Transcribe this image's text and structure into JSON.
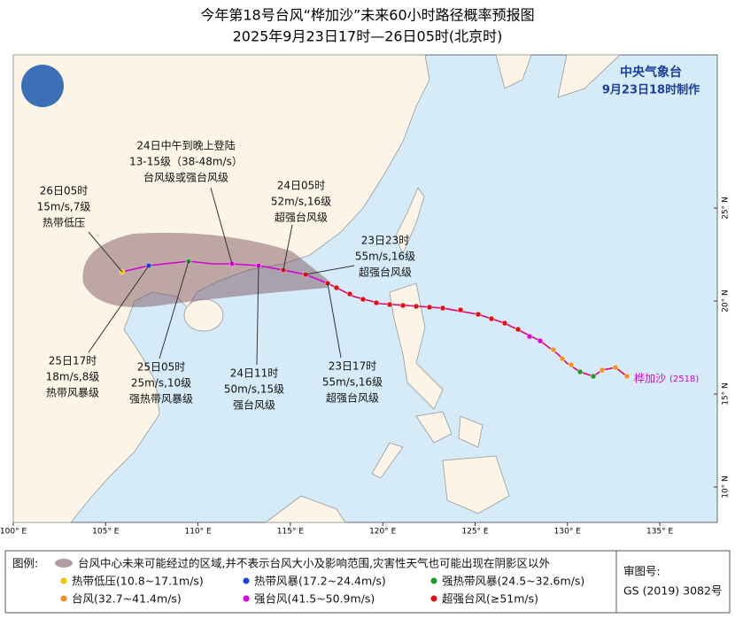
{
  "header": {
    "title": "今年第18号台风“桦加沙”未来60小时路径概率预报图",
    "subtitle": "2025年9月23日17时—26日05时(北京时)"
  },
  "agency": {
    "name": "中央气象台",
    "issued": "9月23日18时制作"
  },
  "annotations": [
    {
      "lines": [
        "24日中午到晚上登陆",
        "13-15级（38-48m/s）",
        "台风级或强台风级"
      ]
    },
    {
      "lines": [
        "26日05时",
        "15m/s,7级",
        "热带低压"
      ]
    },
    {
      "lines": [
        "24日05时",
        "52m/s,16级",
        "超强台风级"
      ]
    },
    {
      "lines": [
        "23日23时",
        "55m/s,16级",
        "超强台风级"
      ]
    },
    {
      "lines": [
        "25日17时",
        "18m/s,8级",
        "热带风暴级"
      ]
    },
    {
      "lines": [
        "25日05时",
        "25m/s,10级",
        "强热带风暴级"
      ]
    },
    {
      "lines": [
        "24日11时",
        "50m/s,15级",
        "强台风级"
      ]
    },
    {
      "lines": [
        "23日17时",
        "55m/s,16级",
        "超强台风级"
      ]
    }
  ],
  "storm_label": {
    "name": "桦加沙",
    "id": "(2518)"
  },
  "map": {
    "lon_ticks": [
      {
        "value": 100,
        "label": "100° E"
      },
      {
        "value": 105,
        "label": "105° E"
      },
      {
        "value": 110,
        "label": "110° E"
      },
      {
        "value": 115,
        "label": "115° E"
      },
      {
        "value": 120,
        "label": "120° E"
      },
      {
        "value": 125,
        "label": "125° E"
      },
      {
        "value": 130,
        "label": "130° E"
      },
      {
        "value": 135,
        "label": "135° E"
      }
    ],
    "lat_ticks": [
      {
        "value": 10,
        "label": "10° N"
      },
      {
        "value": 15,
        "label": "15° N"
      },
      {
        "value": 20,
        "label": "20° N"
      },
      {
        "value": 25,
        "label": "25° N"
      }
    ]
  },
  "legend": {
    "title": "图例:",
    "shade": "台风中心未来可能经过的区域,并不表示台风大小及影响范围,灾害性天气也可能出现在阴影区以外",
    "items": [
      "热带低压(10.8~17.1m/s)",
      "热带风暴(17.2~24.4m/s)",
      "强热带风暴(24.5~32.6m/s)",
      "台风(32.7~41.4m/s)",
      "强台风(41.5~50.9m/s)",
      "超强台风(≥51m/s)"
    ]
  },
  "approval": {
    "label": "审图号:",
    "number": "GS (2019) 3082号"
  }
}
